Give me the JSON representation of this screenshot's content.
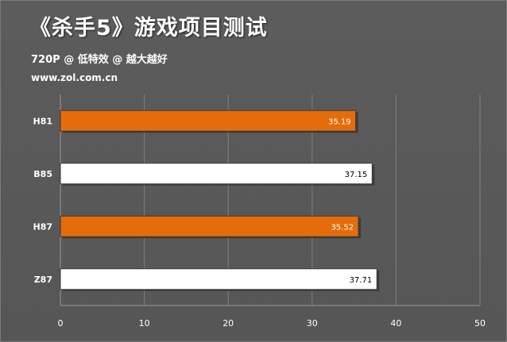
{
  "header": {
    "title": "《杀手5》游戏项目测试",
    "subtitle": "720P @ 低特效 @ 越大越好",
    "site": "www.zol.com.cn"
  },
  "colors": {
    "highlight_bar": "#e46c0a",
    "normal_bar": "#ffffff",
    "background": "#595959",
    "gridline": "#7f7f7f"
  },
  "chart_data": {
    "type": "bar",
    "orientation": "horizontal",
    "categories": [
      "H81",
      "B85",
      "H87",
      "Z87"
    ],
    "values": [
      35.19,
      37.15,
      35.52,
      37.71
    ],
    "value_labels": [
      "35.19",
      "37.15",
      "35.52",
      "37.71"
    ],
    "highlighted": [
      true,
      false,
      true,
      false
    ],
    "xlim": [
      0,
      50
    ],
    "x_ticks": [
      "0",
      "10",
      "20",
      "30",
      "40",
      "50"
    ],
    "grid": true,
    "legend": "none"
  }
}
